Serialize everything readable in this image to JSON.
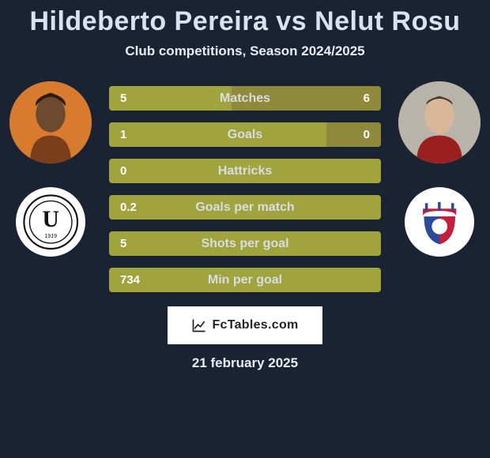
{
  "title": "Hildeberto Pereira vs Nelut Rosu",
  "subtitle": "Club competitions, Season 2024/2025",
  "footer_brand": "FcTables.com",
  "date": "21 february 2025",
  "colors": {
    "background": "#1a2332",
    "bar_left": "#a1a43c",
    "bar_right": "#8e8a3a",
    "bar_single": "#a1a43c",
    "title_text": "#d7e3ef",
    "label_text": "#d7dde4",
    "value_text": "#ffffff"
  },
  "player_left": {
    "name": "Hildeberto Pereira",
    "avatar_bg": "#d97b2e",
    "club_name": "Universitatea Cluj",
    "club_logo_letter": "U",
    "club_logo_bg": "#ffffff",
    "club_logo_text": "#111111"
  },
  "player_right": {
    "name": "Nelut Rosu",
    "avatar_bg": "#bdbab2",
    "club_name": "Otelul Galati",
    "club_logo_bg": "#ffffff"
  },
  "bars": [
    {
      "label": "Matches",
      "left_value": "5",
      "right_value": "6",
      "left_pct": 45,
      "right_pct": 55,
      "show_right": true
    },
    {
      "label": "Goals",
      "left_value": "1",
      "right_value": "0",
      "left_pct": 80,
      "right_pct": 20,
      "show_right": true
    },
    {
      "label": "Hattricks",
      "left_value": "0",
      "right_value": "0",
      "left_pct": 100,
      "right_pct": 0,
      "show_right": false
    },
    {
      "label": "Goals per match",
      "left_value": "0.2",
      "right_value": "",
      "left_pct": 100,
      "right_pct": 0,
      "show_right": false
    },
    {
      "label": "Shots per goal",
      "left_value": "5",
      "right_value": "",
      "left_pct": 100,
      "right_pct": 0,
      "show_right": false
    },
    {
      "label": "Min per goal",
      "left_value": "734",
      "right_value": "",
      "left_pct": 100,
      "right_pct": 0,
      "show_right": false
    }
  ]
}
